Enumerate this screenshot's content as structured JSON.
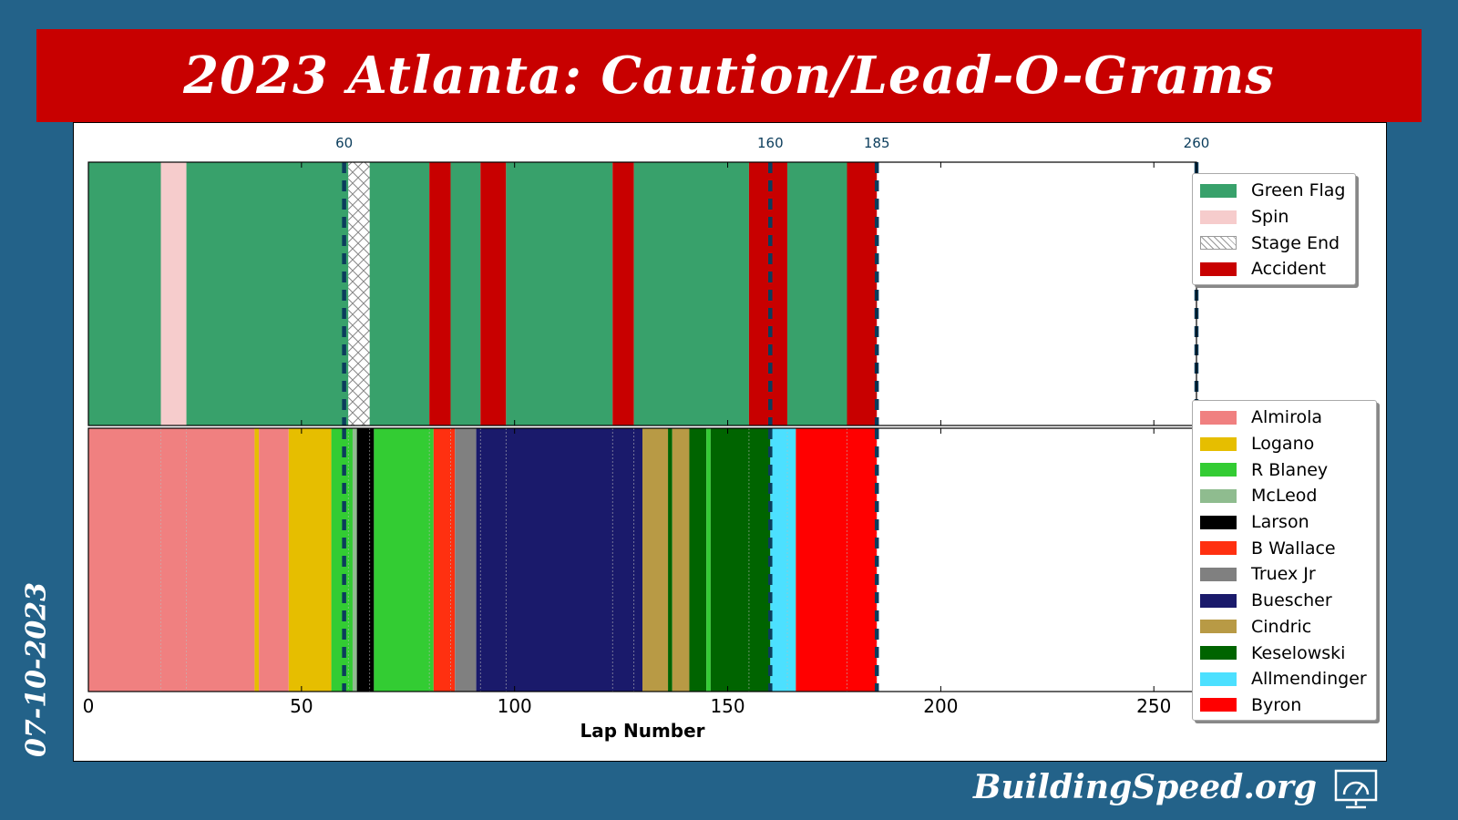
{
  "header": {
    "title": "2023 Atlanta: Caution/Lead-O-Grams"
  },
  "side_label": "07-10-2023",
  "brand": {
    "name": "BuildingSpeed.org",
    "icon": "speedometer-monitor-icon"
  },
  "colors": {
    "background": "#236289",
    "banner": "#c80000",
    "marker_line": "#0b3d5c"
  },
  "chart_data": [
    {
      "type": "timeline",
      "name": "caution",
      "xlim": [
        0,
        260
      ],
      "stage_markers": [
        60,
        160,
        185,
        260
      ],
      "stage_marker_labels": [
        "60",
        "160",
        "185",
        "260"
      ],
      "legend_title": "",
      "legend": [
        {
          "label": "Green Flag",
          "color": "#38a16b"
        },
        {
          "label": "Spin",
          "color": "#f6cccc"
        },
        {
          "label": "Stage End",
          "color": "hatch"
        },
        {
          "label": "Accident",
          "color": "#c80000"
        }
      ],
      "segments": [
        {
          "start": 0,
          "end": 17,
          "type": "Green Flag"
        },
        {
          "start": 17,
          "end": 23,
          "type": "Spin"
        },
        {
          "start": 23,
          "end": 61,
          "type": "Green Flag"
        },
        {
          "start": 61,
          "end": 66,
          "type": "Stage End"
        },
        {
          "start": 66,
          "end": 80,
          "type": "Green Flag"
        },
        {
          "start": 80,
          "end": 85,
          "type": "Accident"
        },
        {
          "start": 85,
          "end": 92,
          "type": "Green Flag"
        },
        {
          "start": 92,
          "end": 98,
          "type": "Accident"
        },
        {
          "start": 98,
          "end": 123,
          "type": "Green Flag"
        },
        {
          "start": 123,
          "end": 128,
          "type": "Accident"
        },
        {
          "start": 128,
          "end": 155,
          "type": "Green Flag"
        },
        {
          "start": 155,
          "end": 164,
          "type": "Accident"
        },
        {
          "start": 164,
          "end": 178,
          "type": "Green Flag"
        },
        {
          "start": 178,
          "end": 185,
          "type": "Accident"
        }
      ]
    },
    {
      "type": "timeline",
      "name": "leader",
      "xlim": [
        0,
        260
      ],
      "xlabel": "Lap Number",
      "xticks": [
        0,
        50,
        100,
        150,
        200,
        250
      ],
      "stage_markers": [
        60,
        160,
        185,
        260
      ],
      "legend": [
        {
          "label": "Almirola",
          "color": "#f08080"
        },
        {
          "label": "Logano",
          "color": "#e6be00"
        },
        {
          "label": "R Blaney",
          "color": "#33cc33"
        },
        {
          "label": "McLeod",
          "color": "#8fbc8f"
        },
        {
          "label": "Larson",
          "color": "#000000"
        },
        {
          "label": "B Wallace",
          "color": "#ff3010"
        },
        {
          "label": "Truex Jr",
          "color": "#808080"
        },
        {
          "label": "Buescher",
          "color": "#1a1a6b"
        },
        {
          "label": "Cindric",
          "color": "#b89a45"
        },
        {
          "label": "Keselowski",
          "color": "#006400"
        },
        {
          "label": "Allmendinger",
          "color": "#4ce0ff"
        },
        {
          "label": "Byron",
          "color": "#ff0000"
        }
      ],
      "segments": [
        {
          "start": 0,
          "end": 39,
          "leader": "Almirola"
        },
        {
          "start": 39,
          "end": 40,
          "leader": "Logano"
        },
        {
          "start": 40,
          "end": 47,
          "leader": "Almirola"
        },
        {
          "start": 47,
          "end": 57,
          "leader": "Logano"
        },
        {
          "start": 57,
          "end": 62,
          "leader": "R Blaney"
        },
        {
          "start": 62,
          "end": 63,
          "leader": "McLeod"
        },
        {
          "start": 63,
          "end": 67,
          "leader": "Larson"
        },
        {
          "start": 67,
          "end": 81,
          "leader": "R Blaney"
        },
        {
          "start": 81,
          "end": 86,
          "leader": "B Wallace"
        },
        {
          "start": 86,
          "end": 91,
          "leader": "Truex Jr"
        },
        {
          "start": 91,
          "end": 130,
          "leader": "Buescher"
        },
        {
          "start": 130,
          "end": 136,
          "leader": "Cindric"
        },
        {
          "start": 136,
          "end": 137,
          "leader": "Keselowski"
        },
        {
          "start": 137,
          "end": 141,
          "leader": "Cindric"
        },
        {
          "start": 141,
          "end": 145,
          "leader": "Keselowski"
        },
        {
          "start": 145,
          "end": 146,
          "leader": "R Blaney"
        },
        {
          "start": 146,
          "end": 160,
          "leader": "Keselowski"
        },
        {
          "start": 160,
          "end": 166,
          "leader": "Allmendinger"
        },
        {
          "start": 166,
          "end": 185,
          "leader": "Byron"
        }
      ]
    }
  ]
}
